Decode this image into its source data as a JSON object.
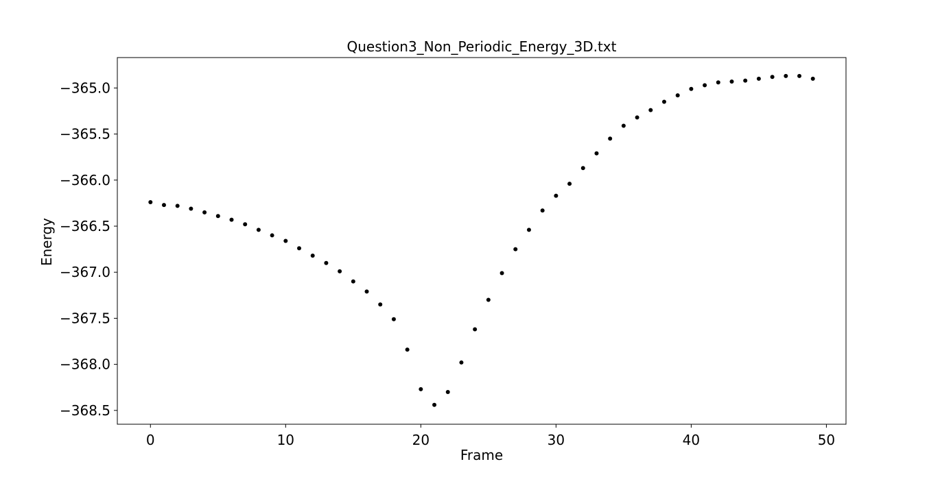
{
  "chart_data": {
    "type": "scatter",
    "title": "Question3_Non_Periodic_Energy_3D.txt",
    "xlabel": "Frame",
    "ylabel": "Energy",
    "xlim": [
      -2.45,
      51.45
    ],
    "ylim": [
      -368.65,
      -364.67
    ],
    "x_ticks": [
      0,
      10,
      20,
      30,
      40,
      50
    ],
    "x_tick_labels": [
      "0",
      "10",
      "20",
      "30",
      "40",
      "50"
    ],
    "y_ticks": [
      -365.0,
      -365.5,
      -366.0,
      -366.5,
      -367.0,
      -367.5,
      -368.0,
      -368.5
    ],
    "y_tick_labels": [
      "−365.0",
      "−365.5",
      "−366.0",
      "−366.5",
      "−367.0",
      "−367.5",
      "−368.0",
      "−368.5"
    ],
    "grid": false,
    "marker_color": "#000000",
    "x": [
      0,
      1,
      2,
      3,
      4,
      5,
      6,
      7,
      8,
      9,
      10,
      11,
      12,
      13,
      14,
      15,
      16,
      17,
      18,
      19,
      20,
      21,
      22,
      23,
      24,
      25,
      26,
      27,
      28,
      29,
      30,
      31,
      32,
      33,
      34,
      35,
      36,
      37,
      38,
      39,
      40,
      41,
      42,
      43,
      44,
      45,
      46,
      47,
      48,
      49
    ],
    "y": [
      -366.24,
      -366.27,
      -366.28,
      -366.31,
      -366.35,
      -366.39,
      -366.43,
      -366.48,
      -366.54,
      -366.6,
      -366.66,
      -366.74,
      -366.82,
      -366.9,
      -366.99,
      -367.1,
      -367.21,
      -367.35,
      -367.51,
      -367.84,
      -368.27,
      -368.44,
      -368.3,
      -367.98,
      -367.62,
      -367.3,
      -367.01,
      -366.75,
      -366.54,
      -366.33,
      -366.17,
      -366.04,
      -365.87,
      -365.71,
      -365.55,
      -365.41,
      -365.32,
      -365.24,
      -365.15,
      -365.08,
      -365.01,
      -364.97,
      -364.94,
      -364.93,
      -364.92,
      -364.9,
      -364.88,
      -364.87,
      -364.87,
      -364.9
    ]
  }
}
